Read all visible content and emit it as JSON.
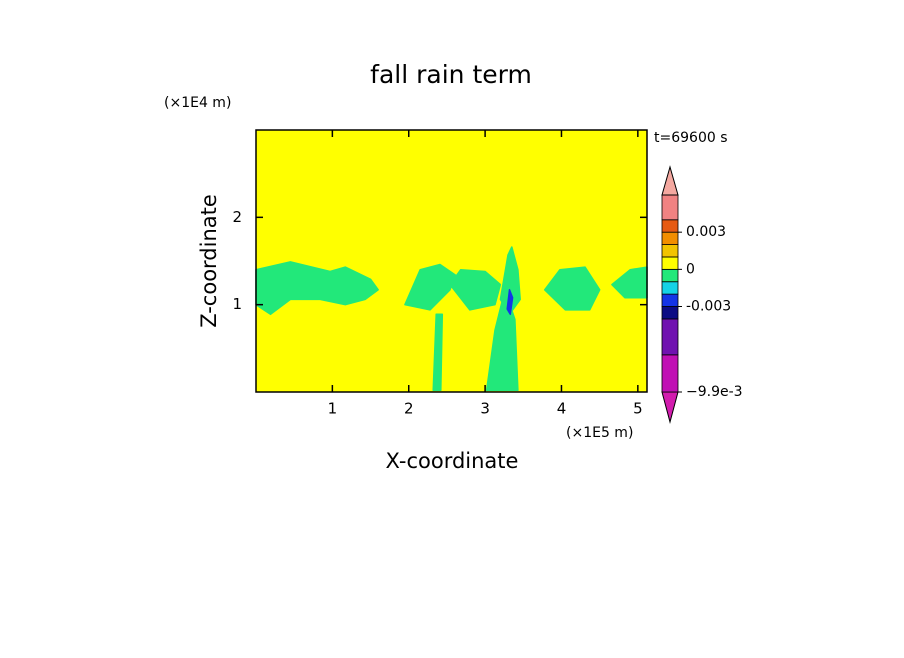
{
  "chart_data": {
    "type": "contour",
    "title": "fall rain term",
    "time_label": "t=69600 s",
    "xlabel": "X-coordinate",
    "ylabel": "Z-coordinate",
    "x_scale_label": "(×1E5 m)",
    "y_scale_label": "(×1E4 m)",
    "xlim": [
      0,
      5.12
    ],
    "ylim": [
      0,
      3
    ],
    "xticks": [
      1,
      2,
      3,
      4,
      5
    ],
    "yticks": [
      1,
      2
    ],
    "background_value": 0.0005,
    "regions": [
      {
        "value": -0.0005,
        "x": [
          0,
          0.45,
          0.97,
          1.17,
          1.5,
          1.6,
          1.43,
          1.17,
          0.84,
          0.45,
          0.19,
          0
        ],
        "z": [
          1.4,
          1.49,
          1.38,
          1.43,
          1.29,
          1.17,
          1.06,
          1.0,
          1.06,
          1.06,
          0.89,
          1.0
        ]
      },
      {
        "value": -0.0005,
        "x": [
          1.95,
          2.15,
          2.41,
          2.61,
          2.54,
          2.28
        ],
        "z": [
          1.0,
          1.4,
          1.46,
          1.34,
          1.17,
          0.94
        ]
      },
      {
        "value": -0.0005,
        "x": [
          2.54,
          2.68,
          3.0,
          3.2,
          3.13,
          2.8
        ],
        "z": [
          1.23,
          1.4,
          1.38,
          1.23,
          1.0,
          0.94
        ]
      },
      {
        "value": -0.0005,
        "x": [
          2.32,
          2.36,
          2.44,
          2.42
        ],
        "z": [
          0.02,
          0.89,
          0.89,
          0.02
        ]
      },
      {
        "value": -0.0005,
        "x": [
          3.02,
          3.13,
          3.26,
          3.39,
          3.43
        ],
        "z": [
          0.02,
          0.71,
          1.17,
          0.83,
          0.02
        ]
      },
      {
        "value": -0.0005,
        "x": [
          3.2,
          3.3,
          3.35,
          3.43,
          3.46,
          3.32
        ],
        "z": [
          1.06,
          1.57,
          1.66,
          1.4,
          1.06,
          0.89
        ]
      },
      {
        "value": -0.0005,
        "x": [
          3.78,
          3.98,
          4.31,
          4.5,
          4.37,
          4.05
        ],
        "z": [
          1.17,
          1.4,
          1.43,
          1.17,
          0.94,
          0.94
        ]
      },
      {
        "value": -0.0005,
        "x": [
          4.66,
          4.9,
          5.12,
          5.12,
          4.83
        ],
        "z": [
          1.23,
          1.4,
          1.43,
          1.08,
          1.08
        ]
      },
      {
        "value": -0.0025,
        "x": [
          3.29,
          3.32,
          3.36,
          3.33
        ],
        "z": [
          0.95,
          1.17,
          1.08,
          0.89
        ]
      }
    ],
    "colorbar": {
      "levels": [
        -0.0099,
        -0.0069,
        -0.004,
        -0.003,
        -0.002,
        -0.001,
        0,
        0.001,
        0.002,
        0.003,
        0.004,
        0.006
      ],
      "colors": [
        "#d21cae",
        "#c010b4",
        "#7012b0",
        "#0c0c84",
        "#1434e6",
        "#14d2e6",
        "#22e87a",
        "#ffff00",
        "#f2c400",
        "#f28e00",
        "#e65a12",
        "#f08282",
        "#f4a8a0"
      ],
      "ticks": [
        0.003,
        0,
        -0.003,
        {
          "value": -0.0099,
          "label": "−9.9e-3"
        }
      ]
    }
  }
}
